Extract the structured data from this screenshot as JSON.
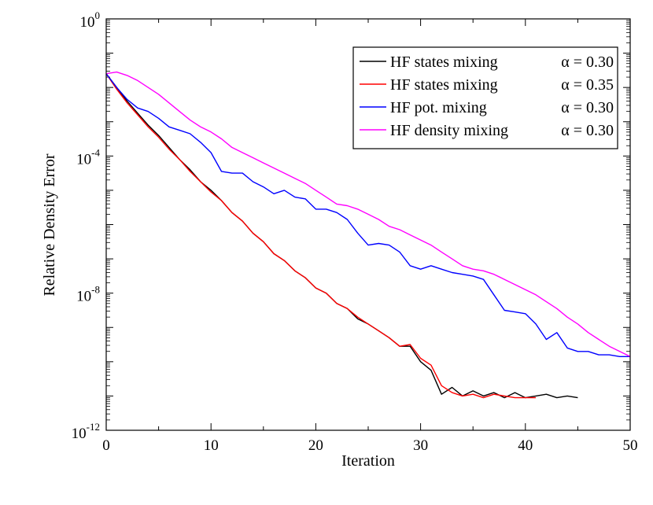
{
  "chart_data": {
    "type": "line",
    "title": "",
    "xlabel": "Iteration",
    "ylabel": "Relative Density Error",
    "xlim": [
      0,
      50
    ],
    "ylim_log10": [
      -12,
      0
    ],
    "yscale": "log",
    "grid": false,
    "legend_position": "top-right",
    "x_ticks": [
      {
        "value": 0,
        "label": "0"
      },
      {
        "value": 10,
        "label": "10"
      },
      {
        "value": 20,
        "label": "20"
      },
      {
        "value": 30,
        "label": "30"
      },
      {
        "value": 40,
        "label": "40"
      },
      {
        "value": 50,
        "label": "50"
      }
    ],
    "y_ticks": [
      {
        "exp": 0,
        "base": "10",
        "sup": "0"
      },
      {
        "exp": -4,
        "base": "10",
        "sup": "-4"
      },
      {
        "exp": -8,
        "base": "10",
        "sup": "-8"
      },
      {
        "exp": -12,
        "base": "10",
        "sup": "-12"
      }
    ],
    "series": [
      {
        "name": "HF states mixing",
        "alpha_text": "α = 0.30",
        "color": "#000000",
        "x": [
          0,
          1,
          2,
          3,
          4,
          5,
          6,
          7,
          8,
          9,
          10,
          11,
          12,
          13,
          14,
          15,
          16,
          17,
          18,
          19,
          20,
          21,
          22,
          23,
          24,
          25,
          26,
          27,
          28,
          29,
          30,
          31,
          32,
          33,
          34,
          35,
          36,
          37,
          38,
          39,
          40,
          41,
          42,
          43,
          44,
          45
        ],
        "log10_y": [
          -1.6,
          -2.0,
          -2.4,
          -2.75,
          -3.1,
          -3.4,
          -3.75,
          -4.1,
          -4.4,
          -4.75,
          -5.0,
          -5.3,
          -5.65,
          -5.9,
          -6.25,
          -6.5,
          -6.85,
          -7.05,
          -7.35,
          -7.55,
          -7.85,
          -8.0,
          -8.3,
          -8.45,
          -8.75,
          -8.9,
          -9.1,
          -9.3,
          -9.55,
          -9.55,
          -10.0,
          -10.25,
          -10.95,
          -10.75,
          -11.0,
          -10.85,
          -11.0,
          -10.9,
          -11.05,
          -10.9,
          -11.05,
          -11.0,
          -10.95,
          -11.05,
          -11.0,
          -11.05
        ]
      },
      {
        "name": "HF states mixing",
        "alpha_text": "α = 0.35",
        "color": "#ff0000",
        "x": [
          0,
          1,
          2,
          3,
          4,
          5,
          6,
          7,
          8,
          9,
          10,
          11,
          12,
          13,
          14,
          15,
          16,
          17,
          18,
          19,
          20,
          21,
          22,
          23,
          24,
          25,
          26,
          27,
          28,
          29,
          30,
          31,
          32,
          33,
          34,
          35,
          36,
          37,
          38,
          39,
          40,
          41
        ],
        "log10_y": [
          -1.6,
          -2.05,
          -2.45,
          -2.8,
          -3.15,
          -3.45,
          -3.8,
          -4.1,
          -4.45,
          -4.75,
          -5.05,
          -5.3,
          -5.65,
          -5.9,
          -6.25,
          -6.5,
          -6.85,
          -7.05,
          -7.35,
          -7.55,
          -7.85,
          -8.0,
          -8.3,
          -8.45,
          -8.7,
          -8.9,
          -9.1,
          -9.3,
          -9.55,
          -9.5,
          -9.9,
          -10.1,
          -10.7,
          -10.9,
          -11.0,
          -10.95,
          -11.05,
          -10.95,
          -11.0,
          -11.05,
          -11.05,
          -11.05
        ]
      },
      {
        "name": "HF pot. mixing",
        "alpha_text": "α = 0.30",
        "color": "#0000ff",
        "x": [
          0,
          1,
          2,
          3,
          4,
          5,
          6,
          7,
          8,
          9,
          10,
          11,
          12,
          13,
          14,
          15,
          16,
          17,
          18,
          19,
          20,
          21,
          22,
          23,
          24,
          25,
          26,
          27,
          28,
          29,
          30,
          31,
          32,
          33,
          34,
          35,
          36,
          37,
          38,
          39,
          40,
          41,
          42,
          43,
          44,
          45,
          46,
          47,
          48,
          49,
          50
        ],
        "log10_y": [
          -1.6,
          -2.0,
          -2.35,
          -2.6,
          -2.7,
          -2.9,
          -3.15,
          -3.25,
          -3.35,
          -3.6,
          -3.9,
          -4.45,
          -4.5,
          -4.5,
          -4.75,
          -4.9,
          -5.1,
          -5.0,
          -5.2,
          -5.25,
          -5.55,
          -5.55,
          -5.65,
          -5.85,
          -6.25,
          -6.6,
          -6.55,
          -6.6,
          -6.8,
          -7.2,
          -7.3,
          -7.2,
          -7.3,
          -7.4,
          -7.45,
          -7.5,
          -7.6,
          -8.05,
          -8.5,
          -8.55,
          -8.6,
          -8.9,
          -9.35,
          -9.15,
          -9.6,
          -9.7,
          -9.7,
          -9.8,
          -9.8,
          -9.85,
          -9.85
        ]
      },
      {
        "name": "HF density mixing",
        "alpha_text": "α = 0.30",
        "color": "#ff00ff",
        "x": [
          0,
          1,
          2,
          3,
          4,
          5,
          6,
          7,
          8,
          9,
          10,
          11,
          12,
          13,
          14,
          15,
          16,
          17,
          18,
          19,
          20,
          21,
          22,
          23,
          24,
          25,
          26,
          27,
          28,
          29,
          30,
          31,
          32,
          33,
          34,
          35,
          36,
          37,
          38,
          39,
          40,
          41,
          42,
          43,
          44,
          45,
          46,
          47,
          48,
          49,
          50
        ],
        "log10_y": [
          -1.6,
          -1.55,
          -1.65,
          -1.8,
          -2.0,
          -2.2,
          -2.45,
          -2.7,
          -2.95,
          -3.15,
          -3.3,
          -3.5,
          -3.75,
          -3.9,
          -4.05,
          -4.2,
          -4.35,
          -4.5,
          -4.65,
          -4.8,
          -5.0,
          -5.2,
          -5.4,
          -5.45,
          -5.55,
          -5.7,
          -5.85,
          -6.05,
          -6.15,
          -6.3,
          -6.45,
          -6.6,
          -6.8,
          -7.0,
          -7.2,
          -7.3,
          -7.35,
          -7.45,
          -7.6,
          -7.75,
          -7.9,
          -8.05,
          -8.25,
          -8.45,
          -8.7,
          -8.9,
          -9.15,
          -9.35,
          -9.55,
          -9.7,
          -9.85
        ]
      }
    ]
  }
}
